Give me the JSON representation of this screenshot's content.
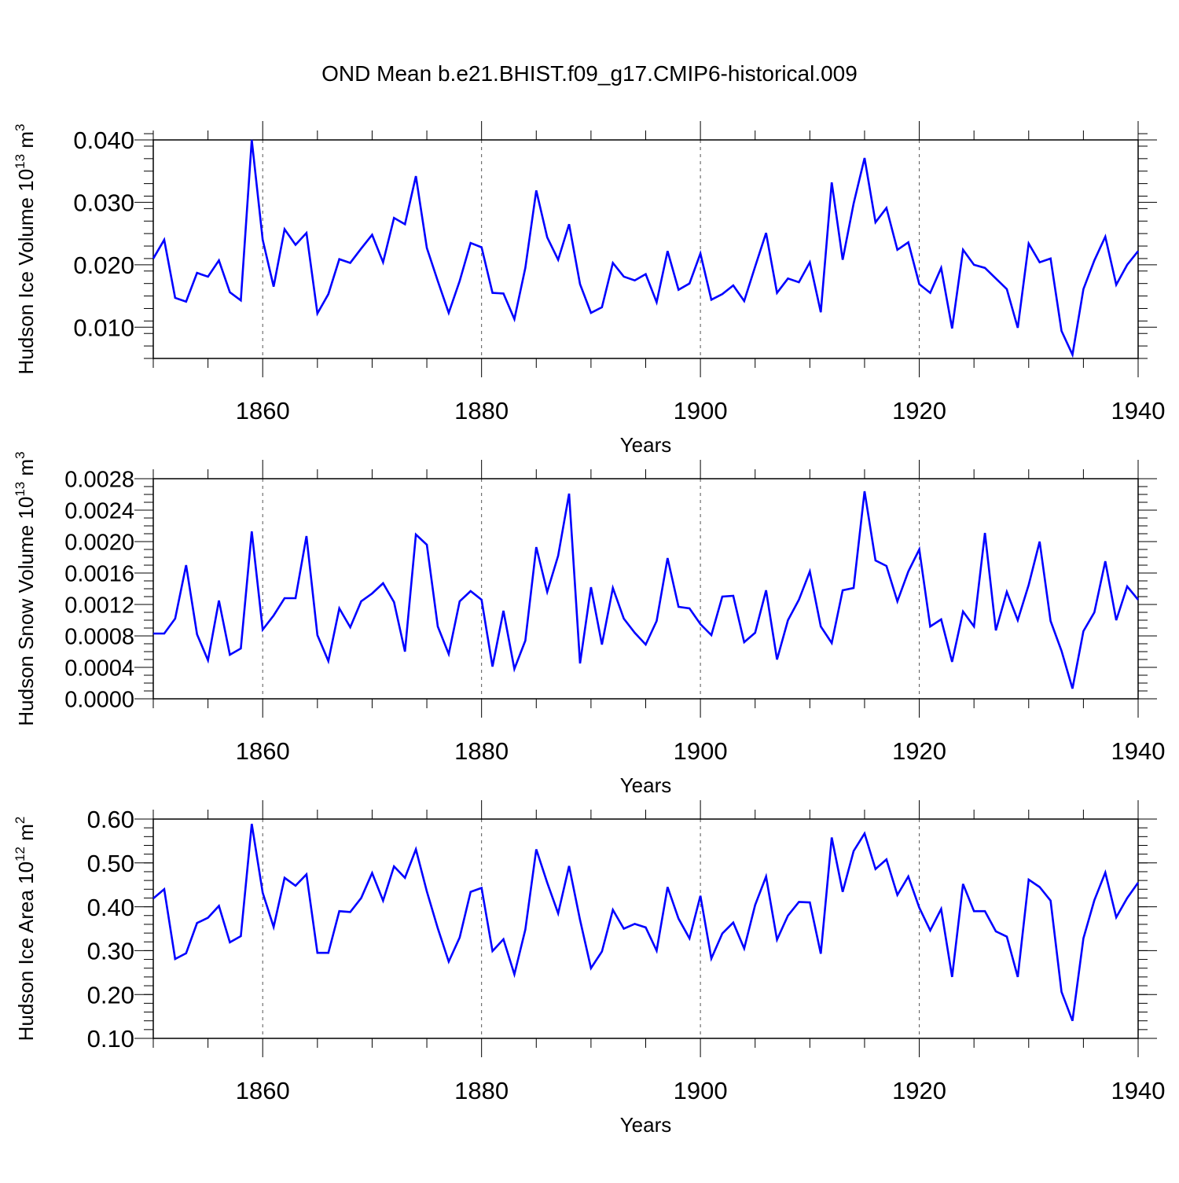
{
  "figure": {
    "title": "OND Mean b.e21.BHIST.f09_g17.CMIP6-historical.009",
    "line_color": "#0000ff"
  },
  "chart_data": [
    {
      "type": "line",
      "ylabel": "Hudson Ice Volume 10",
      "ylabel_exp": "13",
      "ylabel_unit": " m",
      "ylabel_unit_exp": "3",
      "xlabel": "Years",
      "xlim": [
        1850,
        1940
      ],
      "ylim": [
        0.005,
        0.04
      ],
      "yticks": [
        0.01,
        0.02,
        0.03,
        0.04
      ],
      "ytick_labels": [
        "0.010",
        "0.020",
        "0.030",
        "0.040"
      ],
      "yminor_step": 0.002,
      "xticks": [
        1860,
        1880,
        1900,
        1920,
        1940
      ],
      "xtick_labels": [
        "1860",
        "1880",
        "1900",
        "1920",
        "1940"
      ],
      "x_start": 1850,
      "values": [
        0.021,
        0.024,
        0.0147,
        0.0141,
        0.0187,
        0.0181,
        0.0207,
        0.0156,
        0.0143,
        0.04,
        0.024,
        0.0165,
        0.0257,
        0.0232,
        0.0251,
        0.0122,
        0.0153,
        0.0209,
        0.0203,
        0.0226,
        0.0248,
        0.0204,
        0.0275,
        0.0265,
        0.0342,
        0.0227,
        0.0174,
        0.0123,
        0.0174,
        0.0235,
        0.0228,
        0.0155,
        0.0154,
        0.0113,
        0.0195,
        0.0319,
        0.0244,
        0.0208,
        0.0265,
        0.0169,
        0.0123,
        0.0132,
        0.0203,
        0.0181,
        0.0175,
        0.0185,
        0.014,
        0.0222,
        0.016,
        0.017,
        0.0218,
        0.0144,
        0.0153,
        0.0167,
        0.0142,
        0.0197,
        0.0251,
        0.0155,
        0.0178,
        0.0172,
        0.0204,
        0.0124,
        0.0332,
        0.0208,
        0.0298,
        0.0371,
        0.0268,
        0.0291,
        0.0224,
        0.0236,
        0.0169,
        0.0155,
        0.0195,
        0.0098,
        0.0224,
        0.02,
        0.0195,
        0.0178,
        0.0161,
        0.0099,
        0.0234,
        0.0204,
        0.021,
        0.0094,
        0.0056,
        0.0161,
        0.0207,
        0.0245,
        0.0168,
        0.02,
        0.0222
      ]
    },
    {
      "type": "line",
      "ylabel": "Hudson Snow Volume 10",
      "ylabel_exp": "13",
      "ylabel_unit": " m",
      "ylabel_unit_exp": "3",
      "xlabel": "Years",
      "xlim": [
        1850,
        1940
      ],
      "ylim": [
        0.0,
        0.0028
      ],
      "yticks": [
        0.0,
        0.0004,
        0.0008,
        0.0012,
        0.0016,
        0.002,
        0.0024,
        0.0028
      ],
      "ytick_labels": [
        "0.0000",
        "0.0004",
        "0.0008",
        "0.0012",
        "0.0016",
        "0.0020",
        "0.0024",
        "0.0028"
      ],
      "yminor_step": 0.0001,
      "xticks": [
        1860,
        1880,
        1900,
        1920,
        1940
      ],
      "xtick_labels": [
        "1860",
        "1880",
        "1900",
        "1920",
        "1940"
      ],
      "x_start": 1850,
      "values": [
        0.00083,
        0.00083,
        0.00102,
        0.0017,
        0.00082,
        0.00049,
        0.00125,
        0.00056,
        0.00064,
        0.00213,
        0.00088,
        0.00106,
        0.00128,
        0.00128,
        0.00207,
        0.00081,
        0.00048,
        0.00115,
        0.00091,
        0.00124,
        0.00134,
        0.00147,
        0.00123,
        0.0006,
        0.00209,
        0.00196,
        0.00092,
        0.00057,
        0.00124,
        0.00137,
        0.00126,
        0.00041,
        0.00112,
        0.00038,
        0.00074,
        0.00193,
        0.00136,
        0.00182,
        0.00261,
        0.00045,
        0.00142,
        0.00069,
        0.00141,
        0.00102,
        0.00084,
        0.00069,
        0.00099,
        0.00179,
        0.00117,
        0.00115,
        0.00095,
        0.00081,
        0.0013,
        0.00131,
        0.00072,
        0.00084,
        0.00138,
        0.0005,
        0.001,
        0.00126,
        0.00162,
        0.00092,
        0.00071,
        0.00138,
        0.00141,
        0.00264,
        0.00176,
        0.00169,
        0.00124,
        0.00162,
        0.0019,
        0.00092,
        0.00101,
        0.00047,
        0.00111,
        0.00092,
        0.00211,
        0.00087,
        0.00136,
        0.001,
        0.00145,
        0.002,
        0.00099,
        0.00061,
        0.00013,
        0.00086,
        0.0011,
        0.00175,
        0.001,
        0.00143,
        0.00126
      ]
    },
    {
      "type": "line",
      "ylabel": "Hudson Ice Area 10",
      "ylabel_exp": "12",
      "ylabel_unit": " m",
      "ylabel_unit_exp": "2",
      "xlabel": "Years",
      "xlim": [
        1850,
        1940
      ],
      "ylim": [
        0.1,
        0.6
      ],
      "yticks": [
        0.1,
        0.2,
        0.3,
        0.4,
        0.5,
        0.6
      ],
      "ytick_labels": [
        "0.10",
        "0.20",
        "0.30",
        "0.40",
        "0.50",
        "0.60"
      ],
      "yminor_step": 0.02,
      "xticks": [
        1860,
        1880,
        1900,
        1920,
        1940
      ],
      "xtick_labels": [
        "1860",
        "1880",
        "1900",
        "1920",
        "1940"
      ],
      "x_start": 1850,
      "values": [
        0.419,
        0.44,
        0.281,
        0.294,
        0.363,
        0.375,
        0.402,
        0.319,
        0.333,
        0.589,
        0.432,
        0.354,
        0.466,
        0.448,
        0.474,
        0.295,
        0.295,
        0.39,
        0.388,
        0.42,
        0.477,
        0.414,
        0.492,
        0.466,
        0.531,
        0.435,
        0.351,
        0.275,
        0.33,
        0.434,
        0.443,
        0.299,
        0.326,
        0.246,
        0.348,
        0.531,
        0.455,
        0.385,
        0.493,
        0.37,
        0.26,
        0.298,
        0.393,
        0.35,
        0.361,
        0.353,
        0.3,
        0.445,
        0.373,
        0.328,
        0.425,
        0.282,
        0.339,
        0.364,
        0.305,
        0.404,
        0.469,
        0.325,
        0.38,
        0.411,
        0.41,
        0.293,
        0.558,
        0.434,
        0.527,
        0.567,
        0.486,
        0.508,
        0.427,
        0.469,
        0.398,
        0.346,
        0.395,
        0.24,
        0.452,
        0.39,
        0.39,
        0.344,
        0.332,
        0.24,
        0.462,
        0.445,
        0.414,
        0.206,
        0.14,
        0.328,
        0.415,
        0.478,
        0.376,
        0.42,
        0.455
      ]
    }
  ]
}
